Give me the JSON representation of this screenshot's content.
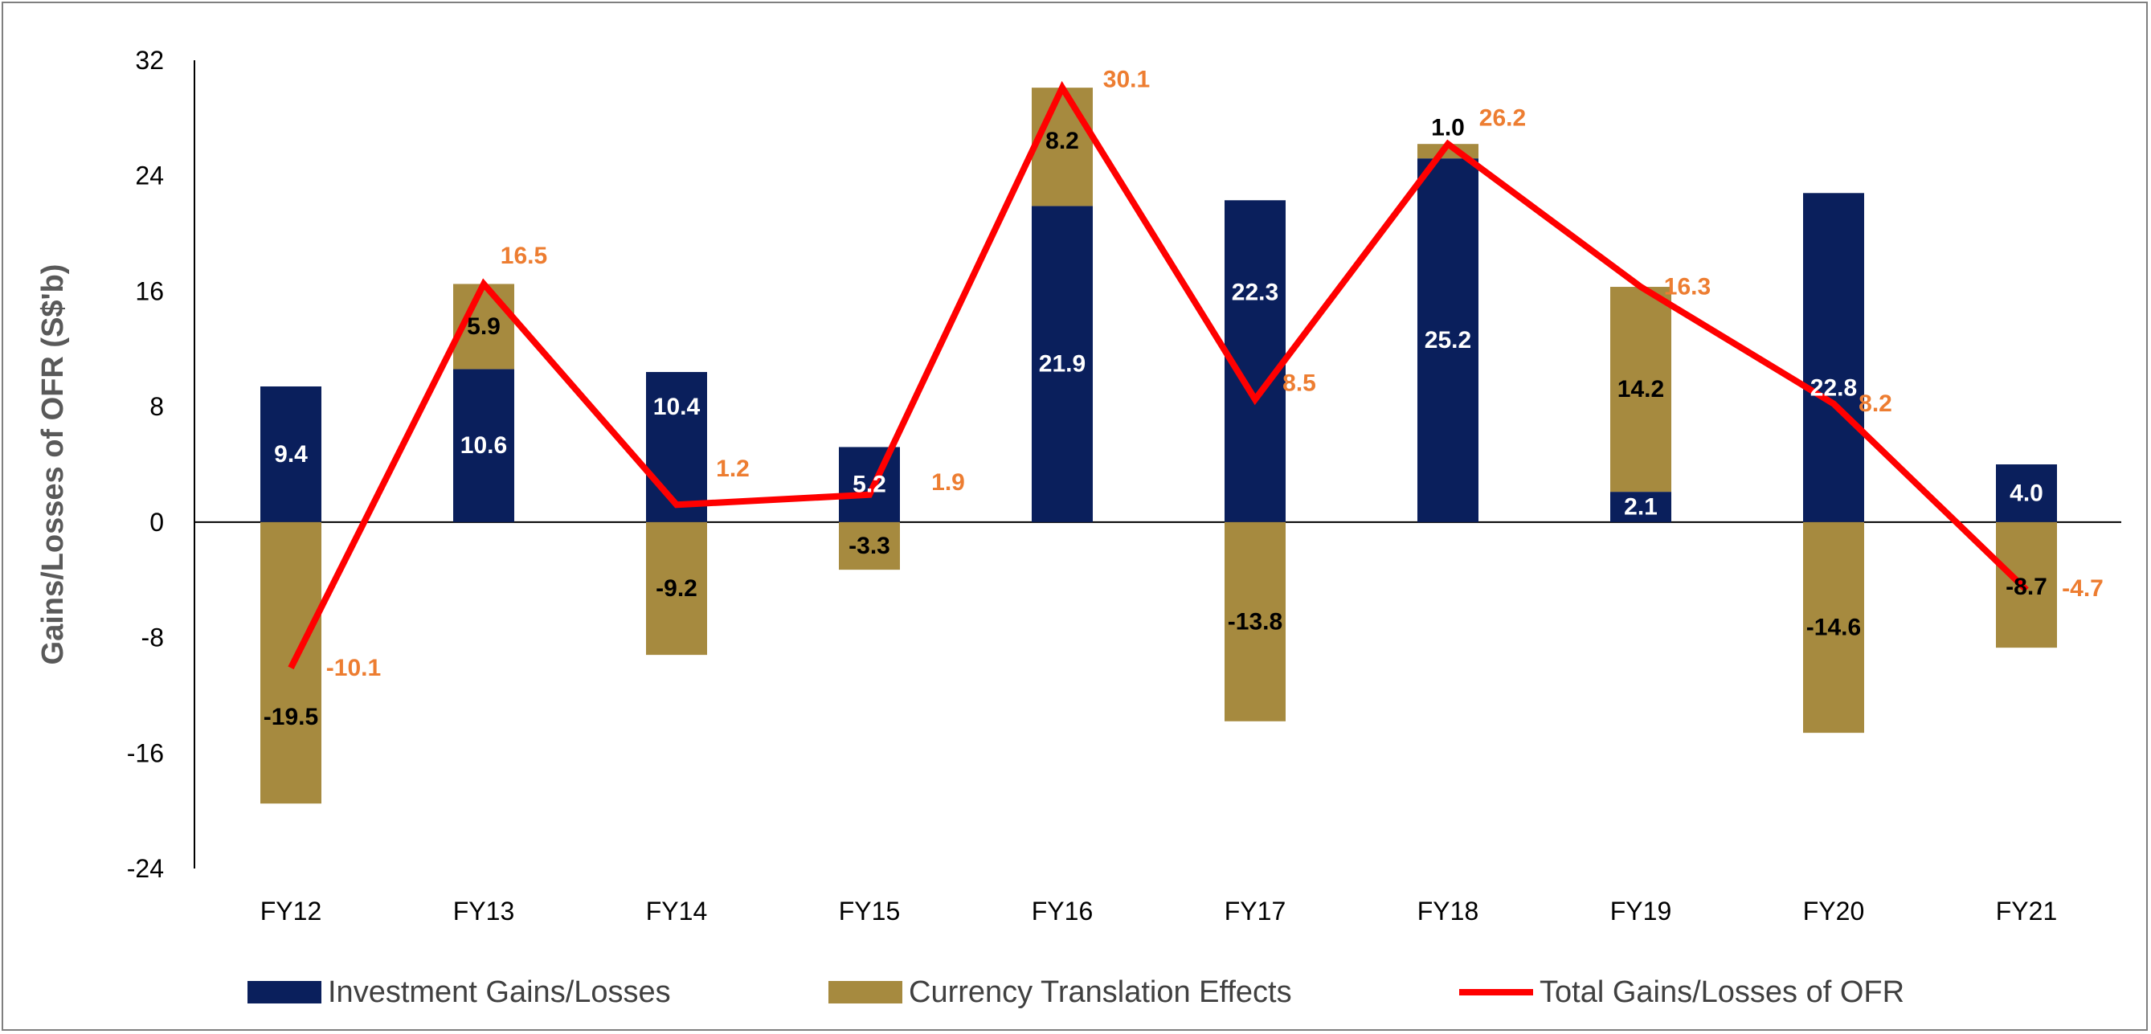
{
  "chart_data": {
    "type": "bar",
    "stacked": true,
    "categories": [
      "FY12",
      "FY13",
      "FY14",
      "FY15",
      "FY16",
      "FY17",
      "FY18",
      "FY19",
      "FY20",
      "FY21"
    ],
    "series": [
      {
        "name": "Investment Gains/Losses",
        "kind": "bar",
        "color": "#0a1f5c",
        "values": [
          9.4,
          10.6,
          10.4,
          5.2,
          21.9,
          22.3,
          25.2,
          2.1,
          22.8,
          4.0
        ],
        "labels": [
          "9.4",
          "10.6",
          "10.4",
          "5.2",
          "21.9",
          "22.3",
          "25.2",
          "2.1",
          "22.8",
          "4.0"
        ]
      },
      {
        "name": "Currency Translation Effects",
        "kind": "bar",
        "color": "#a68a3f",
        "values": [
          -19.5,
          5.9,
          -9.2,
          -3.3,
          8.2,
          -13.8,
          1.0,
          14.2,
          -14.6,
          -8.7
        ],
        "labels": [
          "-19.5",
          "5.9",
          "-9.2",
          "-3.3",
          "8.2",
          "-13.8",
          "1.0",
          "14.2",
          "-14.6",
          "-8.7"
        ]
      },
      {
        "name": "Total Gains/Losses of OFR",
        "kind": "line",
        "color": "#ff0000",
        "values": [
          -10.1,
          16.5,
          1.2,
          1.9,
          30.1,
          8.5,
          26.2,
          16.3,
          8.2,
          -4.7
        ],
        "labels": [
          "-10.1",
          "16.5",
          "1.2",
          "1.9",
          "30.1",
          "8.5",
          "26.2",
          "16.3",
          "8.2",
          "-4.7"
        ]
      }
    ],
    "ylabel": "Gains/Losses of OFR (S$'b)",
    "xlabel": "",
    "ylim": [
      -24,
      32
    ],
    "yticks": [
      "32",
      "24",
      "16",
      "8",
      "0",
      "-8",
      "-16",
      "-24"
    ],
    "legend_position": "bottom",
    "grid": false,
    "label_colors": {
      "total": "#ed7d31",
      "dark": "#000000",
      "light": "#ffffff"
    }
  }
}
